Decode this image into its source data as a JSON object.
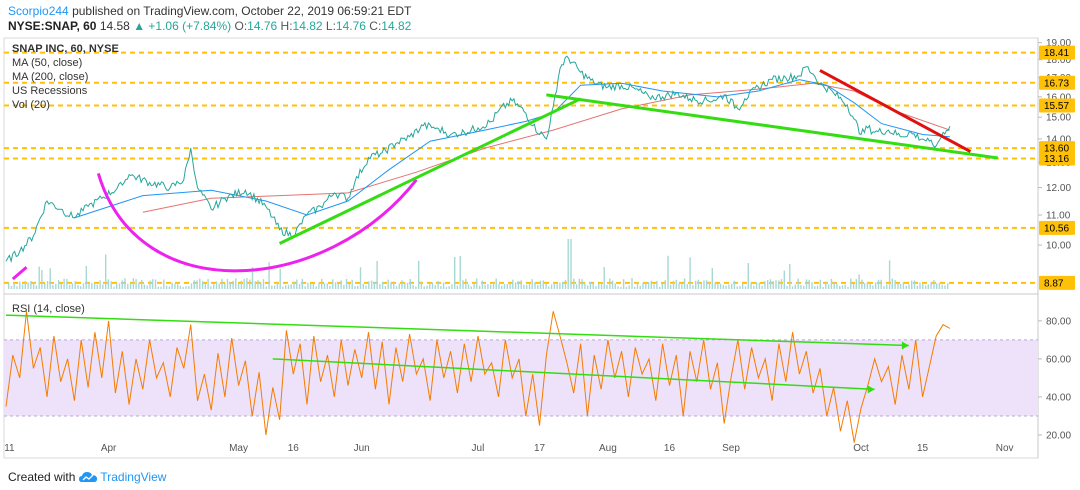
{
  "header": {
    "author": "Scorpio244",
    "published": "published on TradingView.com, October 22, 2019 06:59:21 EDT",
    "symbol": "NYSE:SNAP, 60",
    "last": "14.58",
    "change": "▲ +1.06 (+7.84%)",
    "o_label": "O:",
    "o_val": "14.76",
    "h_label": "H:",
    "h_val": "14.82",
    "l_label": "L:",
    "l_val": "14.76",
    "c_label": "C:",
    "c_val": "14.82"
  },
  "legend": {
    "title": "SNAP INC, 60, NYSE",
    "ma50": "MA (50, close)",
    "ma200": "MA (200, close)",
    "recessions": "US Recessions",
    "vol": "Vol (20)",
    "rsi": "RSI (14, close)"
  },
  "footer": {
    "created_with": "Created with",
    "brand": "TradingView"
  },
  "colors": {
    "price": "#26a69a",
    "ma50": "#2196f3",
    "ma200": "#e57373",
    "level": "#ffc107",
    "green_trend": "#33dd11",
    "red_trend": "#e01010",
    "magenta_curve": "#ee22ee",
    "rsi": "#f57c00",
    "rsi_band": "#ede2fa",
    "volume": "#a8d8d3"
  },
  "chart_data": {
    "type": "line",
    "x_ticks": [
      "11",
      "Apr",
      "May",
      "16",
      "Jun",
      "Jul",
      "17",
      "Aug",
      "16",
      "Sep",
      "Oct",
      "15",
      "Nov"
    ],
    "x_tick_pos": [
      0.5,
      15,
      34,
      42,
      52,
      69,
      78,
      88,
      97,
      106,
      125,
      134,
      146
    ],
    "price_axis": {
      "ticks": [
        10.0,
        11.0,
        12.0,
        13.0,
        14.0,
        15.0,
        16.0,
        17.0,
        18.0,
        19.0
      ],
      "ylim": [
        8.7,
        19.1
      ],
      "scale": "log"
    },
    "levels": [
      18.41,
      16.73,
      15.57,
      13.6,
      13.16,
      10.56,
      8.87
    ],
    "price_series": [
      [
        0,
        9.5
      ],
      [
        2,
        9.8
      ],
      [
        4,
        10.3
      ],
      [
        6,
        11.5
      ],
      [
        8,
        11.2
      ],
      [
        10,
        10.9
      ],
      [
        12,
        11.3
      ],
      [
        14,
        11.6
      ],
      [
        17,
        12.1
      ],
      [
        18,
        12.5
      ],
      [
        21,
        12.2
      ],
      [
        24,
        12.0
      ],
      [
        26,
        12.3
      ],
      [
        27,
        13.6
      ],
      [
        28,
        12.0
      ],
      [
        30,
        11.2
      ],
      [
        32,
        11.6
      ],
      [
        35,
        11.9
      ],
      [
        38,
        11.3
      ],
      [
        40,
        10.5
      ],
      [
        42,
        10.3
      ],
      [
        44,
        11.0
      ],
      [
        46,
        11.3
      ],
      [
        48,
        11.8
      ],
      [
        50,
        11.6
      ],
      [
        51,
        12.2
      ],
      [
        53,
        13.2
      ],
      [
        55,
        13.4
      ],
      [
        57,
        13.8
      ],
      [
        59,
        14.1
      ],
      [
        61,
        14.6
      ],
      [
        63,
        14.5
      ],
      [
        65,
        14.2
      ],
      [
        67,
        14.3
      ],
      [
        69,
        14.5
      ],
      [
        71,
        14.8
      ],
      [
        72,
        15.3
      ],
      [
        74,
        15.8
      ],
      [
        76,
        15.2
      ],
      [
        77,
        14.6
      ],
      [
        79,
        14.0
      ],
      [
        80,
        15.5
      ],
      [
        81,
        17.5
      ],
      [
        82,
        18.2
      ],
      [
        84,
        17.3
      ],
      [
        86,
        16.7
      ],
      [
        88,
        16.5
      ],
      [
        90,
        16.6
      ],
      [
        92,
        16.4
      ],
      [
        94,
        16.0
      ],
      [
        96,
        16.0
      ],
      [
        98,
        16.2
      ],
      [
        100,
        15.9
      ],
      [
        102,
        15.8
      ],
      [
        104,
        15.9
      ],
      [
        105,
        16.1
      ],
      [
        107,
        15.4
      ],
      [
        108,
        15.9
      ],
      [
        110,
        16.5
      ],
      [
        112,
        16.9
      ],
      [
        114,
        17.0
      ],
      [
        116,
        17.1
      ],
      [
        117,
        17.6
      ],
      [
        118,
        17.2
      ],
      [
        119,
        16.7
      ],
      [
        121,
        16.2
      ],
      [
        123,
        15.6
      ],
      [
        124,
        14.9
      ],
      [
        125,
        14.2
      ],
      [
        126,
        14.5
      ],
      [
        127,
        14.3
      ],
      [
        129,
        14.4
      ],
      [
        131,
        14.1
      ],
      [
        132,
        14.3
      ],
      [
        134,
        14.0
      ],
      [
        135,
        13.9
      ],
      [
        136,
        13.7
      ],
      [
        137,
        14.3
      ],
      [
        138,
        14.58
      ]
    ],
    "ma50_series": [
      [
        10,
        10.9
      ],
      [
        20,
        11.7
      ],
      [
        30,
        11.9
      ],
      [
        38,
        11.5
      ],
      [
        44,
        11.0
      ],
      [
        50,
        11.5
      ],
      [
        56,
        12.7
      ],
      [
        62,
        13.9
      ],
      [
        70,
        14.4
      ],
      [
        76,
        14.8
      ],
      [
        80,
        15.2
      ],
      [
        84,
        16.6
      ],
      [
        90,
        16.7
      ],
      [
        96,
        16.3
      ],
      [
        104,
        16.0
      ],
      [
        110,
        16.3
      ],
      [
        116,
        16.9
      ],
      [
        120,
        16.6
      ],
      [
        124,
        15.7
      ],
      [
        128,
        14.7
      ],
      [
        134,
        14.2
      ],
      [
        138,
        14.1
      ]
    ],
    "ma200_series": [
      [
        20,
        11.1
      ],
      [
        30,
        11.6
      ],
      [
        40,
        11.7
      ],
      [
        50,
        11.8
      ],
      [
        60,
        12.6
      ],
      [
        70,
        13.6
      ],
      [
        80,
        14.4
      ],
      [
        90,
        15.4
      ],
      [
        100,
        16.1
      ],
      [
        110,
        16.4
      ],
      [
        118,
        16.7
      ],
      [
        124,
        16.3
      ],
      [
        130,
        15.3
      ],
      [
        138,
        14.4
      ]
    ],
    "trendlines": [
      {
        "color": "green",
        "from": [
          40,
          10.05
        ],
        "to": [
          84,
          15.9
        ]
      },
      {
        "color": "green",
        "from": [
          79,
          16.1
        ],
        "to": [
          145,
          13.18
        ]
      },
      {
        "color": "red",
        "from": [
          119,
          17.4
        ],
        "to": [
          141,
          13.45
        ]
      }
    ],
    "cup_curve": {
      "color": "magenta",
      "from": [
        13.5,
        12.55
      ],
      "bottom": [
        38,
        9.7
      ],
      "to": [
        60,
        12.3
      ]
    },
    "rsi": {
      "ylim": [
        10,
        92
      ],
      "ticks": [
        20.0,
        40.0,
        60.0,
        80.0
      ],
      "band": [
        30,
        70
      ],
      "trend_upper": {
        "from": [
          0,
          83
        ],
        "to": [
          132,
          67
        ]
      },
      "trend_lower": {
        "from": [
          39,
          60
        ],
        "to": [
          127,
          44
        ]
      },
      "series": [
        [
          0,
          35
        ],
        [
          1,
          62
        ],
        [
          2,
          50
        ],
        [
          3,
          85
        ],
        [
          4,
          55
        ],
        [
          5,
          66
        ],
        [
          6,
          40
        ],
        [
          7,
          72
        ],
        [
          8,
          48
        ],
        [
          9,
          60
        ],
        [
          10,
          38
        ],
        [
          11,
          70
        ],
        [
          12,
          45
        ],
        [
          13,
          74
        ],
        [
          14,
          50
        ],
        [
          15,
          80
        ],
        [
          16,
          42
        ],
        [
          17,
          64
        ],
        [
          18,
          36
        ],
        [
          19,
          60
        ],
        [
          20,
          44
        ],
        [
          21,
          70
        ],
        [
          22,
          50
        ],
        [
          23,
          58
        ],
        [
          24,
          40
        ],
        [
          25,
          66
        ],
        [
          26,
          55
        ],
        [
          27,
          78
        ],
        [
          28,
          38
        ],
        [
          29,
          52
        ],
        [
          30,
          33
        ],
        [
          31,
          63
        ],
        [
          32,
          40
        ],
        [
          33,
          71
        ],
        [
          34,
          46
        ],
        [
          35,
          59
        ],
        [
          36,
          30
        ],
        [
          37,
          53
        ],
        [
          38,
          20
        ],
        [
          39,
          45
        ],
        [
          40,
          28
        ],
        [
          41,
          75
        ],
        [
          42,
          52
        ],
        [
          43,
          68
        ],
        [
          44,
          36
        ],
        [
          45,
          72
        ],
        [
          46,
          48
        ],
        [
          47,
          62
        ],
        [
          48,
          40
        ],
        [
          49,
          70
        ],
        [
          50,
          46
        ],
        [
          51,
          65
        ],
        [
          52,
          50
        ],
        [
          53,
          74
        ],
        [
          54,
          44
        ],
        [
          55,
          69
        ],
        [
          56,
          36
        ],
        [
          57,
          66
        ],
        [
          58,
          48
        ],
        [
          59,
          73
        ],
        [
          60,
          52
        ],
        [
          61,
          60
        ],
        [
          62,
          38
        ],
        [
          63,
          70
        ],
        [
          64,
          50
        ],
        [
          65,
          64
        ],
        [
          66,
          42
        ],
        [
          67,
          68
        ],
        [
          68,
          48
        ],
        [
          69,
          72
        ],
        [
          70,
          52
        ],
        [
          71,
          58
        ],
        [
          72,
          40
        ],
        [
          73,
          70
        ],
        [
          74,
          50
        ],
        [
          75,
          60
        ],
        [
          76,
          30
        ],
        [
          77,
          52
        ],
        [
          78,
          25
        ],
        [
          79,
          62
        ],
        [
          80,
          85
        ],
        [
          81,
          72
        ],
        [
          82,
          58
        ],
        [
          83,
          42
        ],
        [
          84,
          68
        ],
        [
          85,
          30
        ],
        [
          86,
          62
        ],
        [
          87,
          44
        ],
        [
          88,
          70
        ],
        [
          89,
          50
        ],
        [
          90,
          64
        ],
        [
          91,
          40
        ],
        [
          92,
          66
        ],
        [
          93,
          52
        ],
        [
          94,
          60
        ],
        [
          95,
          38
        ],
        [
          96,
          68
        ],
        [
          97,
          46
        ],
        [
          98,
          62
        ],
        [
          99,
          30
        ],
        [
          100,
          64
        ],
        [
          101,
          48
        ],
        [
          102,
          70
        ],
        [
          103,
          44
        ],
        [
          104,
          58
        ],
        [
          105,
          26
        ],
        [
          106,
          50
        ],
        [
          107,
          70
        ],
        [
          108,
          44
        ],
        [
          109,
          66
        ],
        [
          110,
          50
        ],
        [
          111,
          60
        ],
        [
          112,
          38
        ],
        [
          113,
          68
        ],
        [
          114,
          48
        ],
        [
          115,
          74
        ],
        [
          116,
          52
        ],
        [
          117,
          64
        ],
        [
          118,
          42
        ],
        [
          119,
          55
        ],
        [
          120,
          30
        ],
        [
          121,
          45
        ],
        [
          122,
          22
        ],
        [
          123,
          38
        ],
        [
          124,
          16
        ],
        [
          125,
          34
        ],
        [
          126,
          46
        ],
        [
          127,
          60
        ],
        [
          128,
          48
        ],
        [
          129,
          56
        ],
        [
          130,
          36
        ],
        [
          131,
          62
        ],
        [
          132,
          44
        ],
        [
          133,
          70
        ],
        [
          134,
          40
        ],
        [
          135,
          56
        ],
        [
          136,
          72
        ],
        [
          137,
          78
        ],
        [
          138,
          76
        ]
      ]
    }
  }
}
